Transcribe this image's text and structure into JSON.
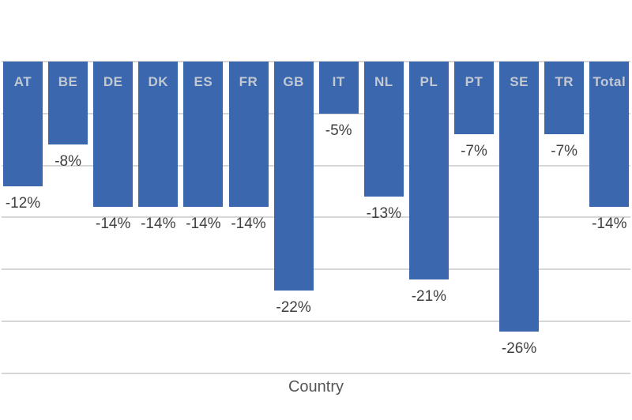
{
  "chart_data": {
    "type": "bar",
    "title": "",
    "xlabel": "Country",
    "ylabel": "",
    "categories": [
      "AT",
      "BE",
      "DE",
      "DK",
      "ES",
      "FR",
      "GB",
      "IT",
      "NL",
      "PL",
      "PT",
      "SE",
      "TR",
      "Total"
    ],
    "values": [
      -12,
      -8,
      -14,
      -14,
      -14,
      -14,
      -22,
      -5,
      -13,
      -21,
      -7,
      -26,
      -7,
      -14
    ],
    "value_labels": [
      "-12%",
      "-8%",
      "-14%",
      "-14%",
      "-14%",
      "-14%",
      "-22%",
      "-5%",
      "-13%",
      "-21%",
      "-7%",
      "-26%",
      "-7%",
      "-14%"
    ],
    "ylim": [
      -30,
      0
    ],
    "grid_step": 5,
    "grid": true,
    "legend_position": "none",
    "orientation": "vertical",
    "colors": {
      "bar_fill": "#3a67ae",
      "category_label": "#c3c9d3",
      "value_label": "#3f3f3f",
      "axis_title": "#555555",
      "gridline": "#d6d6d6",
      "background": "#ffffff"
    }
  }
}
